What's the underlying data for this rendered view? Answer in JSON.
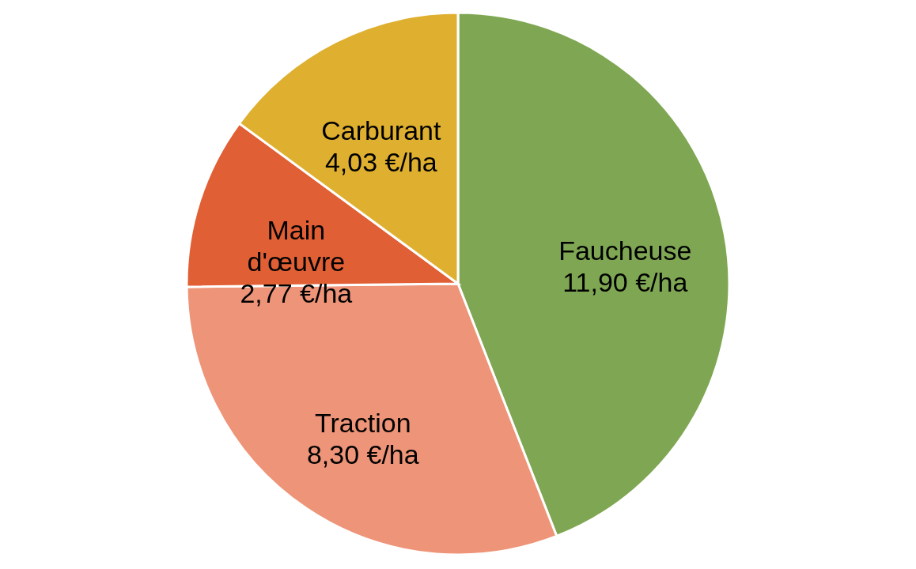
{
  "chart_data": {
    "type": "pie",
    "categories": [
      "Faucheuse",
      "Traction",
      "Main d'œuvre",
      "Carburant"
    ],
    "values": [
      11.9,
      8.3,
      2.77,
      4.03
    ],
    "value_labels": [
      "11,90 €/ha",
      "8,30 €/ha",
      "2,77 €/ha",
      "4,03 €/ha"
    ],
    "colors": [
      "#7fa753",
      "#ee9478",
      "#e15f34",
      "#dfb030"
    ]
  }
}
